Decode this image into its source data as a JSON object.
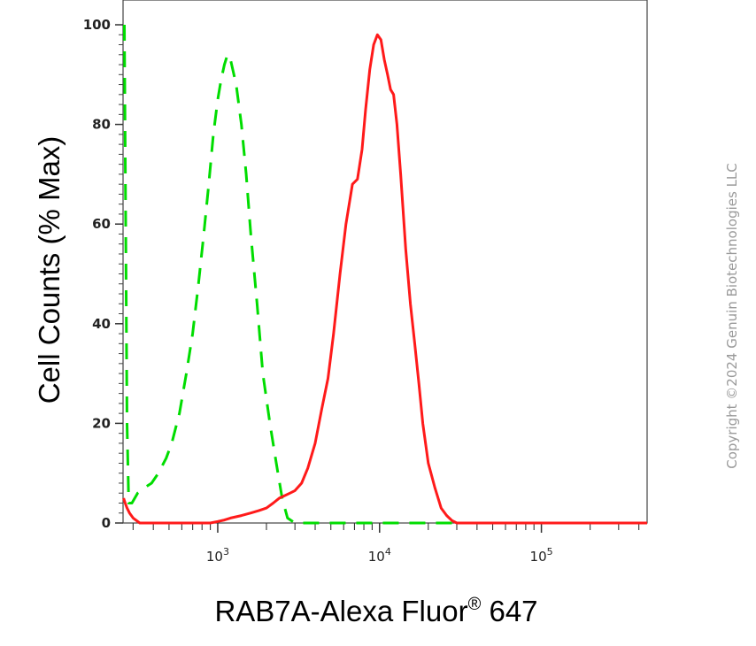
{
  "chart_data": {
    "type": "line",
    "xlabel": "RAB7A-Alexa Fluor",
    "xlabel_superscript": "®",
    "xlabel_suffix": " 647",
    "ylabel": "Cell Counts (% Max)",
    "xscale": "log",
    "xlim": [
      260,
      450000
    ],
    "ylim": [
      0,
      102
    ],
    "yticks": [
      0,
      20,
      40,
      60,
      80,
      100
    ],
    "xticks": [
      {
        "base": "10",
        "exp": "3",
        "value": 1000
      },
      {
        "base": "10",
        "exp": "4",
        "value": 10000
      },
      {
        "base": "10",
        "exp": "5",
        "value": 100000
      }
    ],
    "grid": false,
    "legend": "none",
    "series": [
      {
        "color": "#00dd00",
        "style": "dashed",
        "x": [
          265,
          270,
          275,
          282,
          295,
          320,
          350,
          390,
          430,
          480,
          520,
          580,
          640,
          700,
          760,
          820,
          880,
          940,
          1000,
          1050,
          1100,
          1150,
          1200,
          1300,
          1400,
          1500,
          1600,
          1750,
          1900,
          2100,
          2300,
          2500,
          2700,
          3000,
          3500,
          5000,
          20000,
          100000,
          450000
        ],
        "values": [
          100,
          60,
          20,
          4,
          4,
          6,
          7,
          8,
          10,
          13,
          16,
          22,
          30,
          38,
          48,
          58,
          68,
          78,
          85,
          89,
          92,
          94,
          93,
          88,
          80,
          70,
          58,
          44,
          30,
          20,
          12,
          5,
          1,
          0,
          0,
          0,
          0,
          0,
          0
        ]
      },
      {
        "color": "#ff1a1a",
        "style": "solid",
        "x": [
          262,
          268,
          275,
          285,
          300,
          330,
          370,
          420,
          500,
          600,
          700,
          800,
          900,
          1000,
          1100,
          1200,
          1400,
          1600,
          1800,
          2000,
          2200,
          2400,
          2600,
          2800,
          3000,
          3300,
          3600,
          4000,
          4400,
          4800,
          5200,
          5700,
          6200,
          6800,
          7300,
          7800,
          8200,
          8700,
          9200,
          9700,
          10200,
          10700,
          11200,
          11700,
          12200,
          12800,
          13500,
          14500,
          15500,
          16500,
          17500,
          18500,
          20000,
          22000,
          24000,
          26000,
          28000,
          30000,
          33000,
          37000,
          42000,
          50000,
          70000,
          100000,
          200000,
          450000
        ],
        "values": [
          5,
          4,
          3,
          2,
          1,
          0,
          0,
          0,
          0,
          0,
          0,
          0,
          0,
          0.3,
          0.6,
          1,
          1.5,
          2,
          2.5,
          3,
          4,
          5,
          5.5,
          6,
          6.5,
          8,
          11,
          16,
          23,
          29,
          38,
          50,
          60,
          68,
          69,
          75,
          83,
          91,
          96,
          98,
          97,
          93,
          90,
          87,
          86,
          80,
          70,
          55,
          44,
          36,
          28,
          20,
          12,
          7,
          3,
          1.5,
          0.5,
          0,
          0,
          0,
          0,
          0,
          0,
          0,
          0,
          0
        ]
      }
    ]
  },
  "watermark": "Copyright ©2024 Genuin Biotechnologies LLC"
}
